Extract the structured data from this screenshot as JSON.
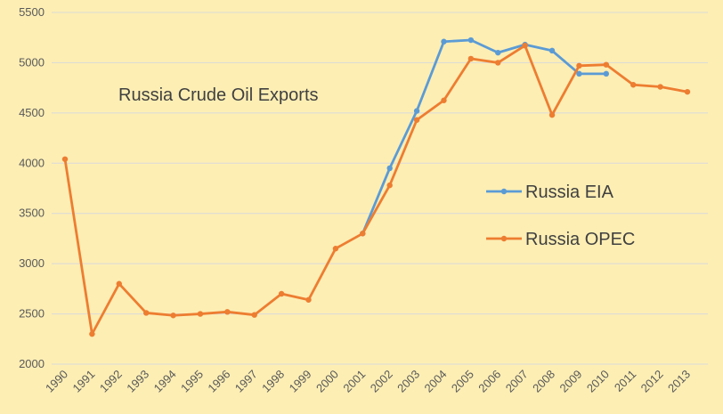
{
  "chart_data": {
    "type": "line",
    "title": "Russia Crude Oil Exports",
    "xlabel": "",
    "ylabel": "",
    "categories": [
      "1990",
      "1991",
      "1992",
      "1993",
      "1994",
      "1995",
      "1996",
      "1997",
      "1998",
      "1999",
      "2000",
      "2001",
      "2002",
      "2003",
      "2004",
      "2005",
      "2006",
      "2007",
      "2008",
      "2009",
      "2010",
      "2011",
      "2012",
      "2013"
    ],
    "ylim": [
      2000,
      5500
    ],
    "yticks": [
      2000,
      2500,
      3000,
      3500,
      4000,
      4500,
      5000,
      5500
    ],
    "grid": true,
    "legend_position": "right",
    "series": [
      {
        "name": "Russia EIA",
        "color": "#5b9bd5",
        "values": [
          null,
          null,
          null,
          null,
          null,
          null,
          null,
          null,
          null,
          null,
          null,
          3300,
          3950,
          4520,
          5210,
          5225,
          5100,
          5180,
          5120,
          4890,
          4890,
          null,
          null,
          null
        ]
      },
      {
        "name": "Russia OPEC",
        "color": "#ed7d31",
        "values": [
          4040,
          2300,
          2800,
          2510,
          2485,
          2500,
          2520,
          2490,
          2700,
          2640,
          3150,
          3300,
          3780,
          4430,
          4625,
          5040,
          5000,
          5170,
          4480,
          4970,
          4980,
          4780,
          4760,
          4710
        ]
      }
    ]
  }
}
